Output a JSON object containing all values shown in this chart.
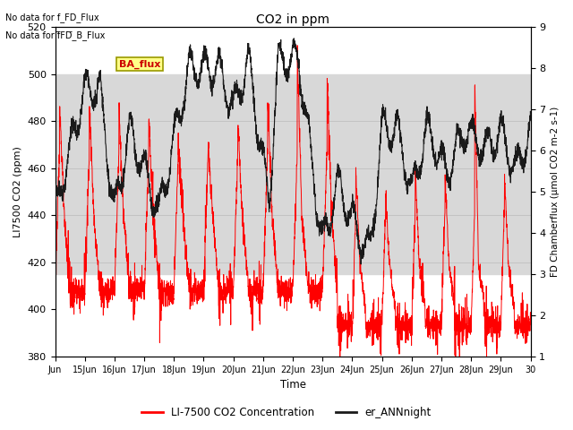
{
  "title": "CO2 in ppm",
  "xlabel": "Time",
  "ylabel_left": "LI7500 CO2 (ppm)",
  "ylabel_right": "FD Chamberflux (μmol CO2 m-2 s-1)",
  "ylim_left": [
    380,
    520
  ],
  "ylim_right": [
    1.0,
    9.0
  ],
  "yticks_left": [
    380,
    400,
    420,
    440,
    460,
    480,
    500,
    520
  ],
  "yticks_right": [
    1.0,
    2.0,
    3.0,
    4.0,
    5.0,
    6.0,
    7.0,
    8.0,
    9.0
  ],
  "xlim": [
    0,
    16
  ],
  "annotation_text1": "No data for f_FD_Flux",
  "annotation_text2": "No data for f̅FD̅_B_Flux",
  "legend_label_red": "LI-7500 CO2 Concentration",
  "legend_label_black": "er_ANNnight",
  "ba_flux_label": "BA_flux",
  "shading_ymin": 415,
  "shading_ymax": 500,
  "shading_color": "#d8d8d8",
  "line_color_red": "#ff0000",
  "line_color_black": "#1a1a1a",
  "background_color": "#ffffff",
  "figsize": [
    6.4,
    4.8
  ],
  "dpi": 100
}
